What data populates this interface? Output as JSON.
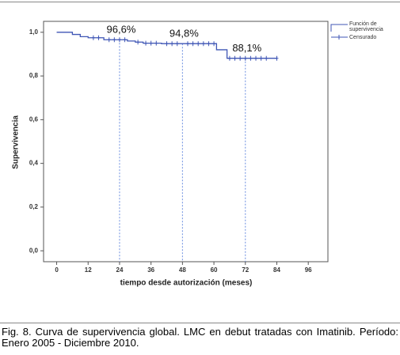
{
  "chart_data": {
    "type": "step",
    "ylabel": "Supervivencia",
    "xlabel": "tiempo desde autorización (meses)",
    "xlim": [
      -5,
      103.5
    ],
    "ylim": [
      -0.05,
      1.05
    ],
    "xticks": [
      0,
      12,
      24,
      36,
      48,
      60,
      72,
      84,
      96
    ],
    "yticks": [
      {
        "value": 0,
        "label": "0,0"
      },
      {
        "value": 0.2,
        "label": "0,2"
      },
      {
        "value": 0.4,
        "label": "0,4"
      },
      {
        "value": 0.6,
        "label": "0,6"
      },
      {
        "value": 0.8,
        "label": "0,8"
      },
      {
        "value": 1,
        "label": "1,0"
      }
    ],
    "series": [
      {
        "name": "Función de supervivencia",
        "color": "#3f56b5",
        "x": [
          0,
          6,
          9,
          12,
          18,
          27,
          30,
          33,
          40,
          61,
          65,
          84
        ],
        "values": [
          1,
          0.99,
          0.98,
          0.975,
          0.966,
          0.96,
          0.955,
          0.95,
          0.948,
          0.92,
          0.881,
          0.881
        ]
      },
      {
        "name": "Censurado",
        "color": "#3f56b5",
        "x": [
          14,
          16,
          20,
          22,
          24,
          26,
          31,
          34,
          36,
          38,
          42,
          44,
          46,
          50,
          52,
          54,
          56,
          58,
          60,
          66,
          68,
          70,
          72,
          74,
          76,
          78,
          80,
          84
        ],
        "values": [
          0.975,
          0.975,
          0.966,
          0.966,
          0.966,
          0.966,
          0.955,
          0.95,
          0.95,
          0.95,
          0.948,
          0.948,
          0.948,
          0.948,
          0.948,
          0.948,
          0.948,
          0.948,
          0.948,
          0.881,
          0.881,
          0.881,
          0.881,
          0.881,
          0.881,
          0.881,
          0.881,
          0.881
        ]
      }
    ],
    "annotations": [
      {
        "x": 24,
        "y": 0.966,
        "label": "96,6%"
      },
      {
        "x": 48,
        "y": 0.948,
        "label": "94,8%"
      },
      {
        "x": 72,
        "y": 0.881,
        "label": "88,1%"
      }
    ],
    "caption": "Fig. 8. Curva de supervivencia global. LMC en debut tratadas con Imatinib. Período: Enero 2005 - Diciembre 2010."
  }
}
